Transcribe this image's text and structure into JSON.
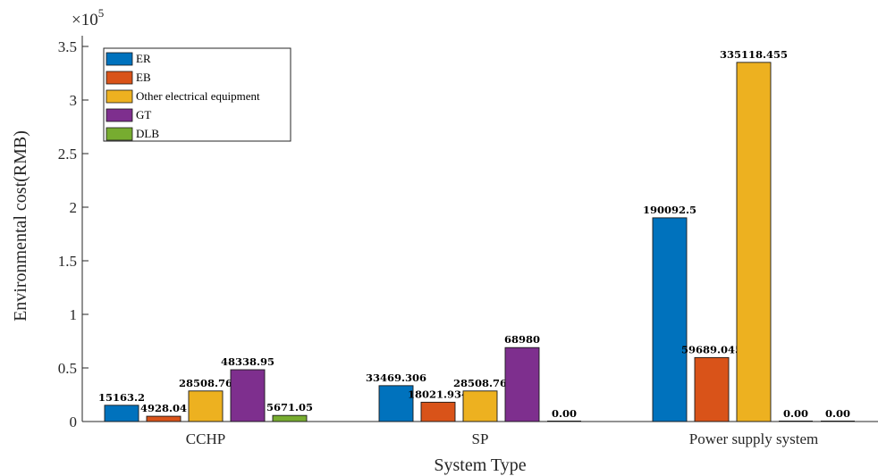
{
  "chart_data": {
    "type": "bar",
    "categories": [
      "CCHP",
      "SP",
      "Power supply system"
    ],
    "series": [
      {
        "name": "ER",
        "color": "#0072BD",
        "values": [
          15163.2,
          33469.306,
          190092.5
        ],
        "labels": [
          "15163.2",
          "33469.306",
          "190092.5"
        ]
      },
      {
        "name": "EB",
        "color": "#D95319",
        "values": [
          4928.04,
          18021.934,
          59689.045
        ],
        "labels": [
          "4928.04",
          "18021.934",
          "59689.045"
        ]
      },
      {
        "name": "Other electrical equipment",
        "color": "#EDB120",
        "values": [
          28508.76,
          28508.76,
          335118.455
        ],
        "labels": [
          "28508.76",
          "28508.76",
          "335118.455"
        ]
      },
      {
        "name": "GT",
        "color": "#7E2F8E",
        "values": [
          48338.95,
          68980,
          0
        ],
        "labels": [
          "48338.95",
          "68980",
          "0.00"
        ]
      },
      {
        "name": "DLB",
        "color": "#77AC30",
        "values": [
          5671.05,
          0,
          0
        ],
        "labels": [
          "5671.05",
          "0.00",
          "0.00"
        ]
      }
    ],
    "title": "",
    "xlabel": "System Type",
    "ylabel": "Environmental cost(RMB)",
    "exponent_base": "×10",
    "exponent_power": "5",
    "ylim": [
      0,
      360000
    ],
    "yticks": [
      0,
      50000,
      100000,
      150000,
      200000,
      250000,
      300000,
      350000
    ],
    "ytick_labels": [
      "0",
      "0.5",
      "1",
      "1.5",
      "2",
      "2.5",
      "3",
      "3.5"
    ],
    "grid": false,
    "legend_position": "top-left"
  }
}
